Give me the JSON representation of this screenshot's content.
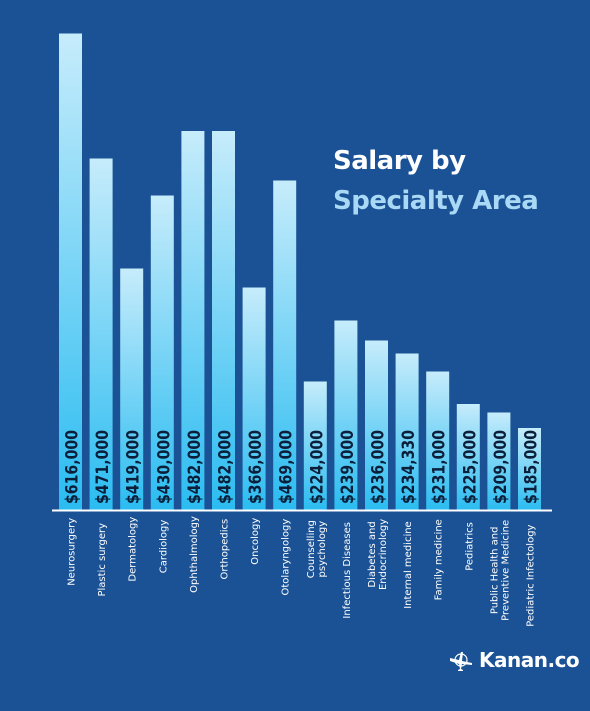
{
  "chart_data": {
    "type": "bar",
    "title_line1": "Salary by",
    "title_line2": "Specialty Area",
    "categories": [
      "Neurosurgery",
      "Plastic surgery",
      "Dermatology",
      "Cardiology",
      "Ophthalmology",
      "Orthopedics",
      "Oncology",
      "Otolaryngology",
      "Counselling psychology",
      "Infectious Diseases",
      "Diabetes and Endocrinology",
      "Internal medicine",
      "Family medicine",
      "Pediatrics",
      "Public Health and Preventive Medicine",
      "Pediatric Infectology"
    ],
    "category_lines": [
      [
        "Neurosurgery"
      ],
      [
        "Plastic surgery"
      ],
      [
        "Dermatology"
      ],
      [
        "Cardiology"
      ],
      [
        "Ophthalmology"
      ],
      [
        "Orthopedics"
      ],
      [
        "Oncology"
      ],
      [
        "Otolaryngology"
      ],
      [
        "Counselling",
        "psychology"
      ],
      [
        "Infectious Diseases"
      ],
      [
        "Diabetes and",
        "Endocrinology"
      ],
      [
        "Internal medicine"
      ],
      [
        "Family medicine"
      ],
      [
        "Pediatrics"
      ],
      [
        "Public Health and",
        "Preventive Medicine"
      ],
      [
        "Pediatric Infectology"
      ]
    ],
    "values": [
      616000,
      471000,
      419000,
      430000,
      482000,
      482000,
      366000,
      469000,
      224000,
      239000,
      236000,
      234330,
      231000,
      225000,
      209000,
      185000
    ],
    "labels": [
      "$616,000",
      "$471,000",
      "$419,000",
      "$430,000",
      "$482,000",
      "$482,000",
      "$366,000",
      "$469,000",
      "$224,000",
      "$239,000",
      "$236,000",
      "$234,330",
      "$231,000",
      "$225,000",
      "$209,000",
      "$185,000"
    ],
    "heights": [
      0.953,
      0.703,
      0.483,
      0.629,
      0.758,
      0.758,
      0.445,
      0.659,
      0.257,
      0.379,
      0.339,
      0.313,
      0.277,
      0.212,
      0.195,
      0.164
    ],
    "note": "bar heights as drawn in the infographic (not linearly proportional to values)",
    "xlabel": "",
    "ylabel": "",
    "grid": false,
    "legend": "none"
  },
  "brand": {
    "name": "Kanan.co"
  },
  "colors": {
    "background": "#1b5295",
    "bar_top": "#c6ecfb",
    "bar_bottom": "#2bbcf1",
    "label_text": "#0b1f3a",
    "axis_text": "#ffffff",
    "title_primary": "#ffffff",
    "title_secondary": "#a9d9f5"
  }
}
